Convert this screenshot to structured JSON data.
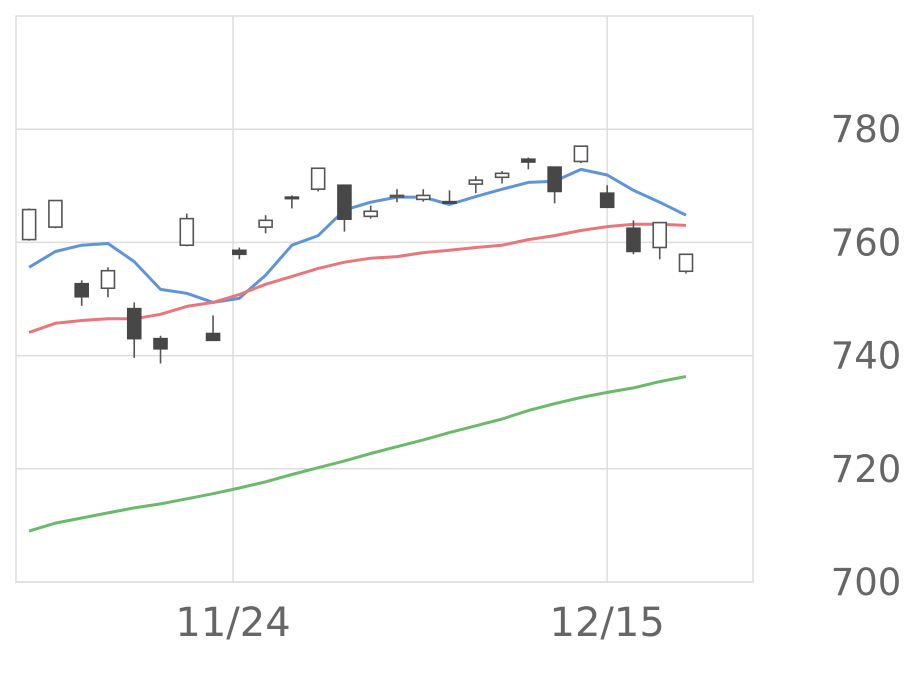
{
  "chart_data": {
    "type": "candlestick",
    "title": "",
    "xlabel": "",
    "ylabel": "",
    "ylim": [
      700,
      800
    ],
    "xlim": [
      -0.5,
      27.55
    ],
    "grid": true,
    "legend": "none",
    "y_ticks": [
      700,
      720,
      740,
      760,
      780
    ],
    "x_ticks": [
      {
        "label": "11/24",
        "x": 7.76
      },
      {
        "label": "12/15",
        "x": 22
      }
    ],
    "colors": {
      "up": "#ffffff",
      "down": "#474747",
      "candle_outline": "#555555",
      "ma_short": "#5f95d8",
      "ma_mid": "#e8777c",
      "ma_long": "#6bb96a",
      "grid": "#dddddd"
    },
    "candles": [
      {
        "o": 760.5,
        "h": 766.0,
        "l": 760.3,
        "c": 765.8
      },
      {
        "o": 762.7,
        "h": 767.4,
        "l": 762.5,
        "c": 767.4
      },
      {
        "o": 752.7,
        "h": 753.3,
        "l": 748.8,
        "c": 750.4
      },
      {
        "o": 751.9,
        "h": 755.6,
        "l": 750.3,
        "c": 755.0
      },
      {
        "o": 748.3,
        "h": 749.4,
        "l": 739.6,
        "c": 743.0
      },
      {
        "o": 743.0,
        "h": 743.5,
        "l": 738.6,
        "c": 741.2
      },
      {
        "o": 759.5,
        "h": 765.1,
        "l": 759.3,
        "c": 764.2
      },
      {
        "o": 743.9,
        "h": 747.1,
        "l": 742.7,
        "c": 742.7
      },
      {
        "o": 758.6,
        "h": 759.1,
        "l": 757.0,
        "c": 757.9
      },
      {
        "o": 762.7,
        "h": 764.8,
        "l": 761.6,
        "c": 763.9
      },
      {
        "o": 768.0,
        "h": 768.3,
        "l": 766.0,
        "c": 767.8
      },
      {
        "o": 769.4,
        "h": 773.1,
        "l": 769.0,
        "c": 773.1
      },
      {
        "o": 770.1,
        "h": 770.1,
        "l": 761.9,
        "c": 764.1
      },
      {
        "o": 764.6,
        "h": 766.5,
        "l": 764.2,
        "c": 765.5
      },
      {
        "o": 768.1,
        "h": 769.4,
        "l": 767.1,
        "c": 768.3
      },
      {
        "o": 767.6,
        "h": 769.4,
        "l": 767.2,
        "c": 768.3
      },
      {
        "o": 767.2,
        "h": 769.2,
        "l": 767.0,
        "c": 767.1
      },
      {
        "o": 770.3,
        "h": 771.7,
        "l": 768.7,
        "c": 771.0
      },
      {
        "o": 771.5,
        "h": 772.6,
        "l": 770.4,
        "c": 772.2
      },
      {
        "o": 774.7,
        "h": 775.0,
        "l": 772.9,
        "c": 774.2
      },
      {
        "o": 773.3,
        "h": 773.3,
        "l": 766.9,
        "c": 769.0
      },
      {
        "o": 774.3,
        "h": 777.0,
        "l": 774.0,
        "c": 777.0
      },
      {
        "o": 768.7,
        "h": 770.1,
        "l": 766.2,
        "c": 766.2
      },
      {
        "o": 762.5,
        "h": 763.9,
        "l": 757.9,
        "c": 758.4
      },
      {
        "o": 759.1,
        "h": 763.5,
        "l": 757.0,
        "c": 763.5
      },
      {
        "o": 754.9,
        "h": 757.9,
        "l": 754.5,
        "c": 757.9
      }
    ],
    "series": [
      {
        "key": "ma_short",
        "values": [
          755.6,
          758.4,
          759.5,
          759.8,
          756.6,
          751.7,
          751.0,
          749.4,
          750.1,
          754.2,
          759.5,
          761.2,
          765.7,
          767.1,
          768.0,
          768.0,
          766.7,
          768.1,
          769.4,
          770.6,
          770.8,
          772.9,
          771.9,
          769.2,
          767.1,
          764.8
        ]
      },
      {
        "key": "ma_mid",
        "values": [
          744.1,
          745.7,
          746.2,
          746.5,
          746.5,
          747.3,
          748.7,
          749.4,
          750.8,
          752.6,
          754.0,
          755.4,
          756.5,
          757.2,
          757.5,
          758.2,
          758.6,
          759.1,
          759.5,
          760.5,
          761.2,
          762.1,
          762.8,
          763.2,
          763.2,
          763.0
        ]
      },
      {
        "key": "ma_long",
        "values": [
          709.0,
          710.4,
          711.3,
          712.2,
          713.1,
          713.8,
          714.7,
          715.6,
          716.6,
          717.7,
          719.0,
          720.2,
          721.4,
          722.7,
          723.9,
          725.1,
          726.4,
          727.6,
          728.8,
          730.3,
          731.5,
          732.6,
          733.5,
          734.3,
          735.4,
          736.3
        ]
      }
    ]
  }
}
